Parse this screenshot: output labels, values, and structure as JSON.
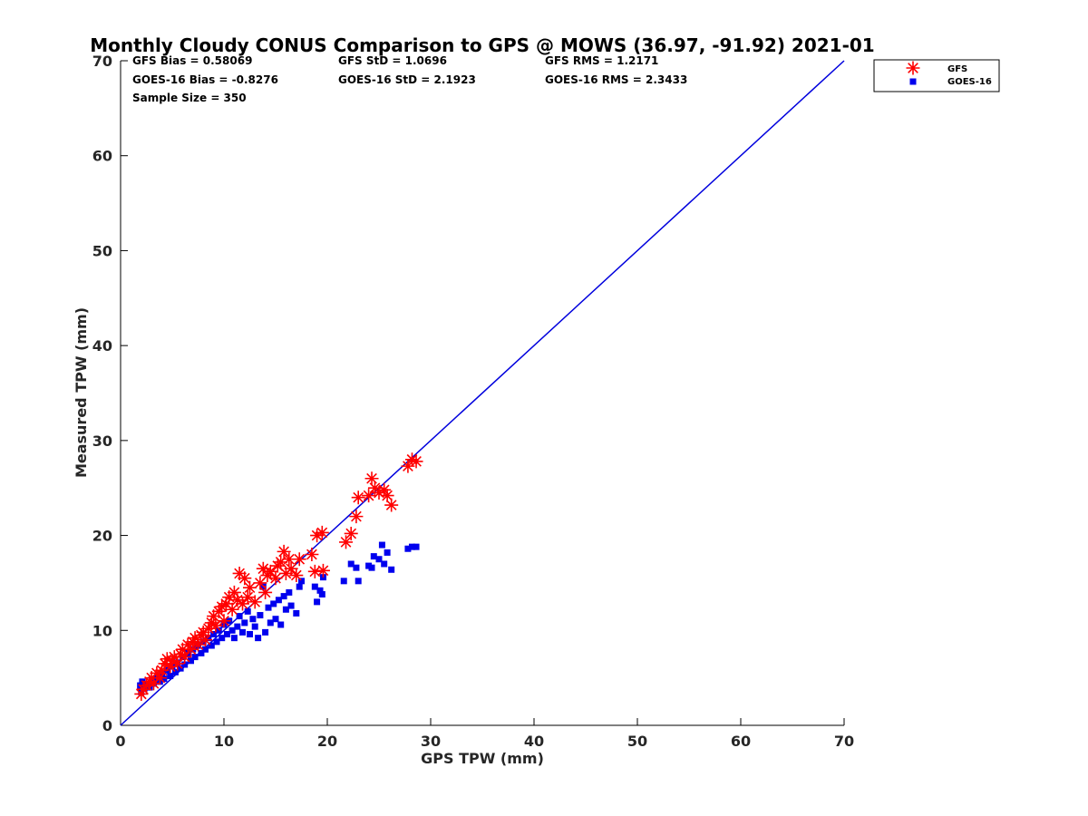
{
  "chart_data": {
    "type": "scatter",
    "title": "Monthly Cloudy CONUS Comparison to GPS @ MOWS (36.97, -91.92) 2021-01",
    "xlabel": "GPS TPW (mm)",
    "ylabel": "Measured TPW (mm)",
    "xlim": [
      0,
      70
    ],
    "ylim": [
      0,
      70
    ],
    "xticks": [
      "0",
      "10",
      "20",
      "30",
      "40",
      "50",
      "60",
      "70"
    ],
    "yticks": [
      "0",
      "10",
      "20",
      "30",
      "40",
      "50",
      "60",
      "70"
    ],
    "grid": false,
    "legend_position": "outside top-right",
    "stats": [
      [
        "GFS Bias = 0.58069",
        "GFS StD = 1.0696",
        "GFS RMS = 1.2171"
      ],
      [
        "GOES-16 Bias = -0.8276",
        "GOES-16 StD = 2.1923",
        "GOES-16 RMS = 2.3433"
      ],
      [
        "Sample Size = 350"
      ]
    ],
    "reference_line": {
      "x": [
        0,
        70
      ],
      "y": [
        0,
        70
      ],
      "color": "#0000dd"
    },
    "series": [
      {
        "name": "GFS",
        "marker": "asterisk",
        "color": "#ff0000",
        "points": [
          [
            2.0,
            3.3
          ],
          [
            2.2,
            3.8
          ],
          [
            2.5,
            4.2
          ],
          [
            2.8,
            4.6
          ],
          [
            3.0,
            5.0
          ],
          [
            3.2,
            4.4
          ],
          [
            3.5,
            5.5
          ],
          [
            3.8,
            5.0
          ],
          [
            4.0,
            5.8
          ],
          [
            4.3,
            6.5
          ],
          [
            4.5,
            7.0
          ],
          [
            4.8,
            6.2
          ],
          [
            5.0,
            6.8
          ],
          [
            5.2,
            7.2
          ],
          [
            5.5,
            6.5
          ],
          [
            5.8,
            7.5
          ],
          [
            6.0,
            8.0
          ],
          [
            6.2,
            7.2
          ],
          [
            6.5,
            8.5
          ],
          [
            6.8,
            8.0
          ],
          [
            7.0,
            8.8
          ],
          [
            7.2,
            9.2
          ],
          [
            7.5,
            8.5
          ],
          [
            7.8,
            9.5
          ],
          [
            8.0,
            9.8
          ],
          [
            8.2,
            9.0
          ],
          [
            8.5,
            10.2
          ],
          [
            8.8,
            10.8
          ],
          [
            9.0,
            11.5
          ],
          [
            9.2,
            10.5
          ],
          [
            9.5,
            12.0
          ],
          [
            9.8,
            12.5
          ],
          [
            10.0,
            11.0
          ],
          [
            10.2,
            12.8
          ],
          [
            10.5,
            13.5
          ],
          [
            10.8,
            12.2
          ],
          [
            11.0,
            14.0
          ],
          [
            11.3,
            13.2
          ],
          [
            11.5,
            16.0
          ],
          [
            11.8,
            12.8
          ],
          [
            12.0,
            15.5
          ],
          [
            12.3,
            13.5
          ],
          [
            12.5,
            14.5
          ],
          [
            13.0,
            13.0
          ],
          [
            13.5,
            15.0
          ],
          [
            13.8,
            16.5
          ],
          [
            14.0,
            14.0
          ],
          [
            14.2,
            15.8
          ],
          [
            14.5,
            16.2
          ],
          [
            15.0,
            15.5
          ],
          [
            15.2,
            16.8
          ],
          [
            15.5,
            17.2
          ],
          [
            15.8,
            18.3
          ],
          [
            16.0,
            16.0
          ],
          [
            16.3,
            17.5
          ],
          [
            16.5,
            16.5
          ],
          [
            17.0,
            15.8
          ],
          [
            17.3,
            17.5
          ],
          [
            18.5,
            18.0
          ],
          [
            18.8,
            16.2
          ],
          [
            19.0,
            20.0
          ],
          [
            19.5,
            20.3
          ],
          [
            19.6,
            16.3
          ],
          [
            21.8,
            19.3
          ],
          [
            22.3,
            20.2
          ],
          [
            22.8,
            22.0
          ],
          [
            23.0,
            24.0
          ],
          [
            24.0,
            24.2
          ],
          [
            24.3,
            26.0
          ],
          [
            24.6,
            25.0
          ],
          [
            25.0,
            24.5
          ],
          [
            25.5,
            24.8
          ],
          [
            25.8,
            24.2
          ],
          [
            26.2,
            23.2
          ],
          [
            27.8,
            27.3
          ],
          [
            28.2,
            28.0
          ],
          [
            28.6,
            27.8
          ]
        ]
      },
      {
        "name": "GOES-16",
        "marker": "square",
        "color": "#0000ee",
        "points": [
          [
            1.9,
            4.2
          ],
          [
            2.0,
            3.5
          ],
          [
            2.1,
            4.6
          ],
          [
            2.3,
            3.9
          ],
          [
            2.5,
            4.3
          ],
          [
            2.8,
            4.0
          ],
          [
            3.0,
            4.8
          ],
          [
            3.2,
            4.4
          ],
          [
            3.5,
            5.0
          ],
          [
            3.8,
            4.6
          ],
          [
            4.0,
            5.4
          ],
          [
            4.2,
            4.9
          ],
          [
            4.5,
            5.8
          ],
          [
            4.8,
            5.2
          ],
          [
            5.0,
            6.2
          ],
          [
            5.3,
            5.6
          ],
          [
            5.5,
            6.6
          ],
          [
            5.8,
            6.0
          ],
          [
            6.0,
            7.2
          ],
          [
            6.2,
            6.4
          ],
          [
            6.5,
            7.6
          ],
          [
            6.8,
            6.8
          ],
          [
            7.0,
            8.0
          ],
          [
            7.2,
            7.2
          ],
          [
            7.5,
            8.4
          ],
          [
            7.8,
            7.6
          ],
          [
            8.0,
            8.8
          ],
          [
            8.2,
            8.0
          ],
          [
            8.5,
            9.2
          ],
          [
            8.8,
            8.4
          ],
          [
            9.0,
            9.6
          ],
          [
            9.3,
            8.8
          ],
          [
            9.5,
            10.0
          ],
          [
            9.8,
            9.2
          ],
          [
            10.0,
            10.6
          ],
          [
            10.3,
            9.6
          ],
          [
            10.5,
            11.0
          ],
          [
            10.8,
            10.0
          ],
          [
            11.0,
            9.2
          ],
          [
            11.3,
            10.4
          ],
          [
            11.5,
            11.5
          ],
          [
            11.8,
            9.8
          ],
          [
            12.0,
            10.8
          ],
          [
            12.3,
            12.0
          ],
          [
            12.5,
            9.6
          ],
          [
            12.8,
            11.2
          ],
          [
            13.0,
            10.4
          ],
          [
            13.3,
            9.2
          ],
          [
            13.5,
            11.6
          ],
          [
            13.8,
            14.6
          ],
          [
            14.0,
            9.8
          ],
          [
            14.3,
            12.4
          ],
          [
            14.5,
            10.8
          ],
          [
            14.8,
            12.8
          ],
          [
            15.0,
            11.2
          ],
          [
            15.3,
            13.2
          ],
          [
            15.5,
            10.6
          ],
          [
            15.8,
            13.6
          ],
          [
            16.0,
            12.2
          ],
          [
            16.3,
            14.0
          ],
          [
            16.5,
            12.6
          ],
          [
            17.0,
            11.8
          ],
          [
            17.3,
            14.6
          ],
          [
            17.5,
            15.2
          ],
          [
            18.8,
            14.6
          ],
          [
            19.0,
            13.0
          ],
          [
            19.3,
            14.2
          ],
          [
            19.5,
            13.8
          ],
          [
            19.6,
            15.6
          ],
          [
            21.6,
            15.2
          ],
          [
            22.3,
            17.0
          ],
          [
            22.8,
            16.6
          ],
          [
            23.0,
            15.2
          ],
          [
            24.0,
            16.8
          ],
          [
            24.3,
            16.6
          ],
          [
            24.5,
            17.8
          ],
          [
            25.0,
            17.5
          ],
          [
            25.3,
            19.0
          ],
          [
            25.5,
            17.0
          ],
          [
            25.8,
            18.2
          ],
          [
            26.2,
            16.4
          ],
          [
            27.8,
            18.6
          ],
          [
            28.2,
            18.8
          ],
          [
            28.6,
            18.8
          ]
        ]
      }
    ]
  }
}
